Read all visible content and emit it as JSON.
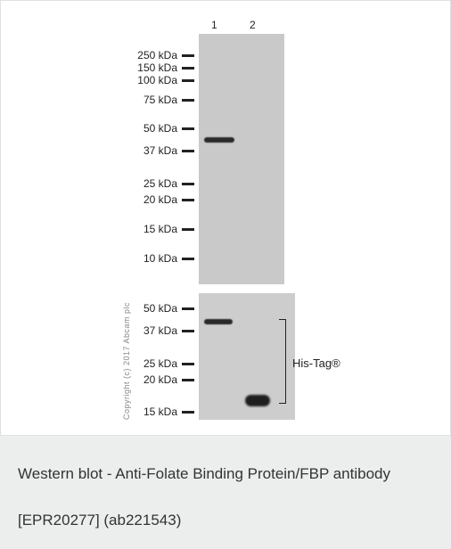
{
  "lanes": [
    "1",
    "2"
  ],
  "markers_top": [
    "250 kDa",
    "150 kDa",
    "100 kDa",
    "75 kDa",
    "50 kDa",
    "37 kDa",
    "25 kDa",
    "20 kDa",
    "15 kDa",
    "10 kDa"
  ],
  "markers_bottom": [
    "50 kDa",
    "37 kDa",
    "25 kDa",
    "20 kDa",
    "15 kDa"
  ],
  "annotation": "His-Tag®",
  "copyright": "Copyright (c) 2017 Abcam plc",
  "caption": "Western blot - Anti-Folate Binding Protein/FBP antibody [EPR20277] (ab221543)"
}
